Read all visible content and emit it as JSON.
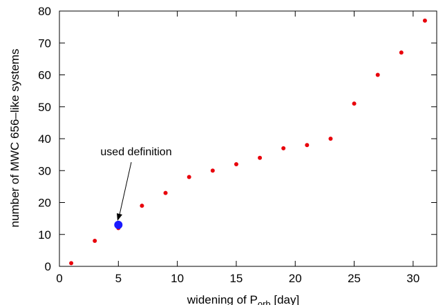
{
  "chart_data": {
    "type": "scatter",
    "xlabel_main": "widening of P",
    "xlabel_sub": "orb",
    "xlabel_unit": " [day]",
    "ylabel": "number of MWC 656–like systems",
    "xlim": [
      0,
      32
    ],
    "ylim": [
      0,
      80
    ],
    "xticks": [
      0,
      5,
      10,
      15,
      20,
      25,
      30
    ],
    "yticks": [
      0,
      10,
      20,
      30,
      40,
      50,
      60,
      70,
      80
    ],
    "grid": false,
    "series": [
      {
        "color": "#e8000b",
        "x": [
          1,
          3,
          5,
          7,
          9,
          11,
          13,
          15,
          17,
          19,
          21,
          23,
          25,
          27,
          29,
          31
        ],
        "y": [
          1,
          8,
          12,
          19,
          23,
          28,
          30,
          32,
          34,
          37,
          38,
          40,
          51,
          60,
          67,
          77
        ]
      },
      {
        "color": "#1a1aff",
        "x": [
          5
        ],
        "y": [
          13
        ]
      }
    ],
    "annotations": [
      {
        "text": "used definition",
        "points_to": [
          5,
          13
        ]
      }
    ]
  }
}
